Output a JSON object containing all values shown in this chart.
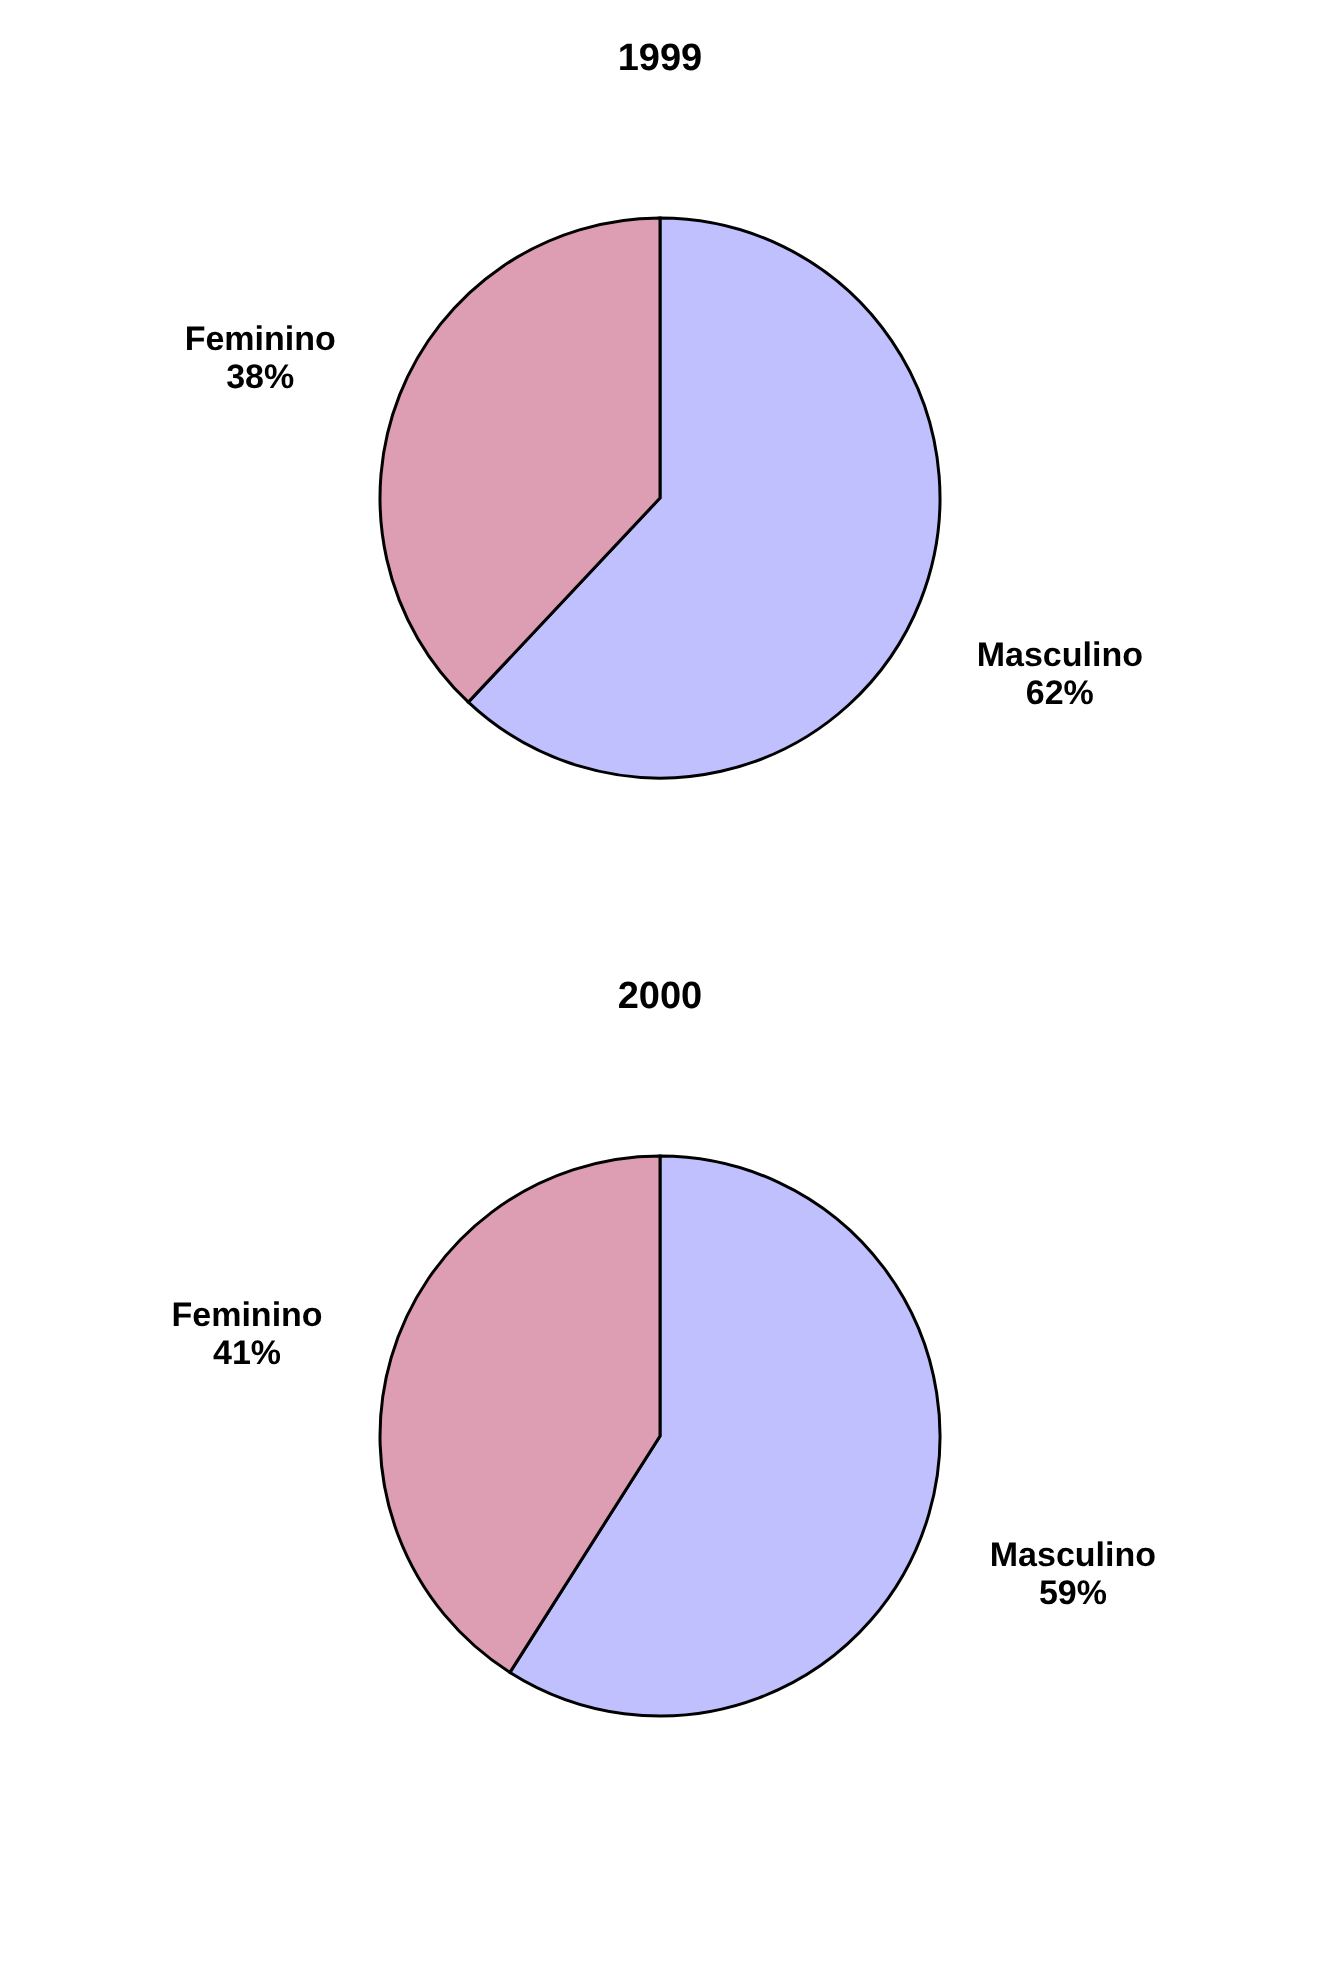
{
  "chart_data": [
    {
      "type": "pie",
      "title": "1999",
      "categories": [
        "Masculino",
        "Feminino"
      ],
      "values": [
        62,
        38
      ],
      "colors": [
        "#c0c0ff",
        "#dd9db3"
      ],
      "value_labels": [
        "62%",
        "38%"
      ]
    },
    {
      "type": "pie",
      "title": "2000",
      "categories": [
        "Masculino",
        "Feminino"
      ],
      "values": [
        59,
        41
      ],
      "colors": [
        "#c0c0ff",
        "#dd9db3"
      ],
      "value_labels": [
        "59%",
        "41%"
      ]
    }
  ]
}
